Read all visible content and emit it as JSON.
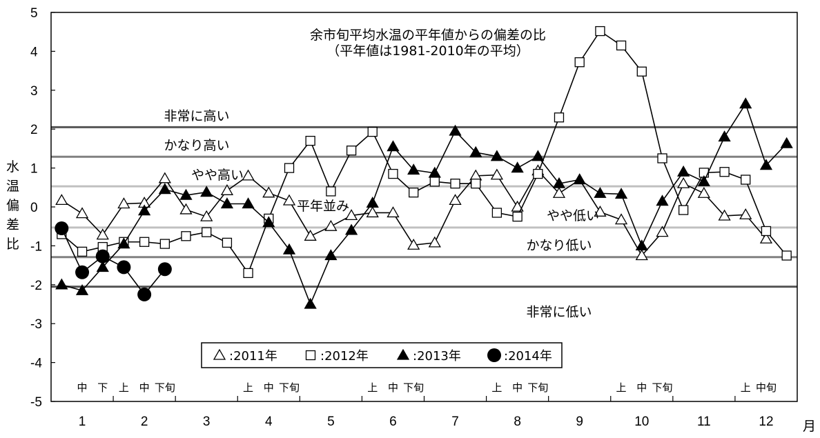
{
  "chart_data": {
    "type": "line",
    "title_lines": [
      "余市旬平均水温の平年値からの偏差の比",
      "（平年値は1981-2010年の平均）"
    ],
    "ylabel_chars": [
      "水",
      "温",
      "偏",
      "差",
      "比"
    ],
    "xunit": "月",
    "ylim": [
      -5,
      5
    ],
    "y_ticks": [
      "5",
      "4",
      "3",
      "2",
      "1",
      "0",
      "-1",
      "-2",
      "-3",
      "-4",
      "-5"
    ],
    "months": [
      "1",
      "2",
      "3",
      "4",
      "5",
      "6",
      "7",
      "8",
      "9",
      "10",
      "11",
      "12"
    ],
    "dekad_labels": [
      {
        "x": 1.0,
        "text": "中"
      },
      {
        "x": 1.33,
        "text": "下"
      },
      {
        "x": 1.67,
        "text": "上"
      },
      {
        "x": 2.0,
        "text": "中"
      },
      {
        "x": 2.33,
        "text": "下旬"
      },
      {
        "x": 3.67,
        "text": "上"
      },
      {
        "x": 4.0,
        "text": "中"
      },
      {
        "x": 4.33,
        "text": "下旬"
      },
      {
        "x": 5.67,
        "text": "上"
      },
      {
        "x": 6.0,
        "text": "中"
      },
      {
        "x": 6.33,
        "text": "下旬"
      },
      {
        "x": 7.67,
        "text": "上"
      },
      {
        "x": 8.0,
        "text": "中"
      },
      {
        "x": 8.33,
        "text": "下旬"
      },
      {
        "x": 9.67,
        "text": "上"
      },
      {
        "x": 10.0,
        "text": "中"
      },
      {
        "x": 10.33,
        "text": "下旬"
      },
      {
        "x": 11.67,
        "text": "上"
      },
      {
        "x": 12.0,
        "text": "中旬"
      }
    ],
    "reference_lines": [
      {
        "y": 2.05,
        "label": "非常に高い",
        "color": "#555555"
      },
      {
        "y": 1.29,
        "label": "かなり高い",
        "color": "#808080"
      },
      {
        "y": 0.53,
        "label": "やや高い",
        "color": "#c0c0c0"
      },
      {
        "y": -0.53,
        "label": "やや低い",
        "color": "#c0c0c0"
      },
      {
        "y": -1.29,
        "label": "かなり低い",
        "color": "#808080"
      },
      {
        "y": -2.05,
        "label": "非常に低い",
        "color": "#555555"
      }
    ],
    "normal_label": "平年並み",
    "series": [
      {
        "name": "2011年",
        "marker": "triangle-open",
        "x": [
          0.67,
          1.0,
          1.33,
          1.67,
          2.0,
          2.33,
          2.67,
          3.0,
          3.33,
          3.67,
          4.0,
          4.33,
          4.67,
          5.0,
          5.33,
          5.67,
          6.0,
          6.33,
          6.67,
          7.0,
          7.33,
          7.67,
          8.0,
          8.33,
          8.67,
          9.0,
          9.33,
          9.67,
          10.0,
          10.33,
          10.67,
          11.0,
          11.33,
          11.67,
          12.0
        ],
        "values": [
          0.17,
          -0.17,
          -0.72,
          0.08,
          0.1,
          0.73,
          -0.07,
          -0.25,
          0.42,
          0.8,
          0.36,
          0.16,
          -0.75,
          -0.5,
          -0.22,
          -0.15,
          -0.15,
          -0.98,
          -0.92,
          0.17,
          0.8,
          0.82,
          0.0,
          0.93,
          0.35,
          0.7,
          -0.13,
          -0.33,
          -1.25,
          -0.65,
          0.6,
          0.35,
          -0.23,
          -0.2,
          -0.82
        ]
      },
      {
        "name": "2012年",
        "marker": "square-open",
        "x": [
          0.67,
          1.0,
          1.33,
          1.67,
          2.0,
          2.33,
          2.67,
          3.0,
          3.33,
          3.67,
          4.0,
          4.33,
          4.67,
          5.0,
          5.33,
          5.67,
          6.0,
          6.33,
          6.67,
          7.0,
          7.33,
          7.67,
          8.0,
          8.33,
          8.67,
          9.0,
          9.33,
          9.67,
          10.0,
          10.33,
          10.67,
          11.0,
          11.33,
          11.67,
          12.0,
          12.33
        ],
        "values": [
          -0.7,
          -1.15,
          -1.03,
          -0.9,
          -0.9,
          -0.95,
          -0.75,
          -0.65,
          -0.92,
          -1.7,
          -0.3,
          1.0,
          1.7,
          0.4,
          1.45,
          1.93,
          0.85,
          0.37,
          0.65,
          0.6,
          0.6,
          -0.15,
          -0.25,
          0.85,
          2.3,
          3.72,
          4.52,
          4.15,
          3.48,
          1.25,
          -0.08,
          0.88,
          0.9,
          0.7,
          -0.62,
          -1.25
        ]
      },
      {
        "name": "2013年",
        "marker": "triangle-filled",
        "x": [
          0.67,
          1.0,
          1.33,
          1.67,
          2.0,
          2.33,
          2.67,
          3.0,
          3.33,
          3.67,
          4.0,
          4.33,
          4.67,
          5.0,
          5.33,
          5.67,
          6.0,
          6.33,
          6.67,
          7.0,
          7.33,
          7.67,
          8.0,
          8.33,
          8.67,
          9.0,
          9.33,
          9.67,
          10.0,
          10.33,
          10.67,
          11.0,
          11.33,
          11.67,
          12.0,
          12.33
        ],
        "values": [
          -2.0,
          -2.15,
          -1.55,
          -0.95,
          -0.1,
          0.45,
          0.3,
          0.38,
          0.08,
          0.08,
          -0.4,
          -1.1,
          -2.5,
          -1.25,
          -0.6,
          0.1,
          1.55,
          0.95,
          0.87,
          1.95,
          1.4,
          1.3,
          1.0,
          1.3,
          0.6,
          0.7,
          0.35,
          0.33,
          -1.0,
          0.15,
          0.9,
          0.65,
          1.8,
          2.65,
          1.07,
          1.63
        ]
      },
      {
        "name": "2014年",
        "marker": "circle-filled",
        "x": [
          0.67,
          1.0,
          1.33,
          1.67,
          2.0,
          2.33
        ],
        "values": [
          -0.55,
          -1.68,
          -1.27,
          -1.55,
          -2.25,
          -1.6
        ]
      }
    ],
    "legend": {
      "placement": "bottom-center"
    }
  }
}
